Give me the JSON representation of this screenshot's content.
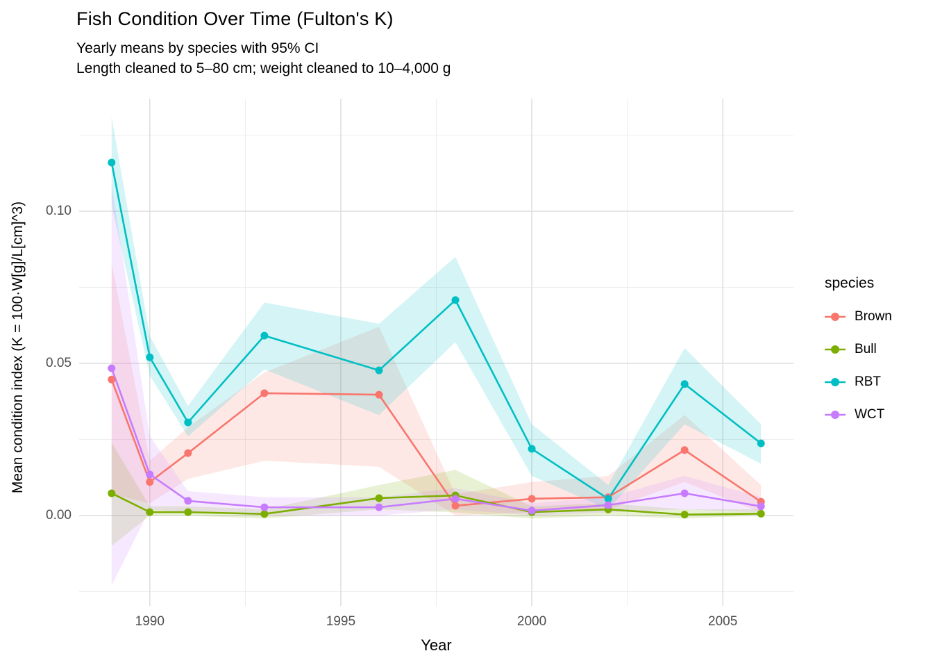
{
  "header": {
    "title": "Fish Condition Over Time (Fulton's K)",
    "subtitle_line1": "Yearly means by species with 95% CI",
    "subtitle_line2": "Length cleaned to 5–80 cm; weight cleaned to 10–4,000 g"
  },
  "chart_data": {
    "type": "line",
    "title": "Fish Condition Over Time (Fulton's K)",
    "subtitle": "Yearly means by species with 95% CI",
    "caption_line": "Length cleaned to 5–80 cm; weight cleaned to 10–4,000 g",
    "xlabel": "Year",
    "ylabel": "Mean condition index (K = 100·W[g]/L[cm]^3)",
    "legend_title": "species",
    "legend_position": "right",
    "grid": true,
    "ci_level": "95%",
    "x": [
      1989,
      1990,
      1991,
      1993,
      1996,
      1998,
      2000,
      2002,
      2004,
      2006
    ],
    "xlim": [
      1988.15,
      2006.85
    ],
    "ylim": [
      -0.0297,
      0.137
    ],
    "x_major_ticks": [
      1990,
      1995,
      2000,
      2005
    ],
    "x_major_tick_labels": [
      "1990",
      "1995",
      "2000",
      "2005"
    ],
    "x_minor_ticks": [
      1992.5,
      1997.5,
      2002.5
    ],
    "y_major_ticks": [
      0.0,
      0.05,
      0.1
    ],
    "y_major_tick_labels": [
      "0.00",
      "0.05",
      "0.10"
    ],
    "y_minor_ticks": [
      -0.025,
      0.025,
      0.075,
      0.125
    ],
    "series": [
      {
        "name": "Brown",
        "color": "#F8766D",
        "values": [
          0.0447,
          0.011,
          0.0205,
          0.0402,
          0.0397,
          0.0032,
          0.0055,
          0.006,
          0.0215,
          0.0045
        ],
        "ci_lower": [
          0.007,
          0.004,
          0.012,
          0.018,
          0.016,
          0.0,
          0.001,
          0.002,
          0.011,
          0.001
        ],
        "ci_upper": [
          0.083,
          0.018,
          0.029,
          0.047,
          0.062,
          0.007,
          0.011,
          0.013,
          0.033,
          0.01
        ]
      },
      {
        "name": "Bull",
        "color": "#7CAE00",
        "values": [
          0.0073,
          0.0011,
          0.0011,
          0.0005,
          0.0057,
          0.0066,
          0.0011,
          0.002,
          0.0003,
          0.0006
        ],
        "ci_lower": [
          -0.01,
          0.0,
          0.0,
          -0.001,
          0.002,
          0.001,
          -0.001,
          0.0,
          -0.001,
          0.0
        ],
        "ci_upper": [
          0.024,
          0.003,
          0.003,
          0.002,
          0.01,
          0.015,
          0.003,
          0.004,
          0.002,
          0.002
        ]
      },
      {
        "name": "RBT",
        "color": "#00BFC4",
        "values": [
          0.116,
          0.052,
          0.0306,
          0.0591,
          0.0477,
          0.0708,
          0.0219,
          0.0055,
          0.0432,
          0.0237
        ],
        "ci_lower": [
          0.102,
          0.046,
          0.026,
          0.048,
          0.033,
          0.057,
          0.013,
          0.002,
          0.03,
          0.017
        ],
        "ci_upper": [
          0.131,
          0.059,
          0.036,
          0.07,
          0.063,
          0.085,
          0.03,
          0.01,
          0.055,
          0.03
        ]
      },
      {
        "name": "WCT",
        "color": "#C77CFF",
        "values": [
          0.0484,
          0.0135,
          0.0048,
          0.0027,
          0.0027,
          0.0055,
          0.0016,
          0.0034,
          0.0073,
          0.003
        ],
        "ci_lower": [
          -0.023,
          0.002,
          0.001,
          0.0,
          0.0,
          0.002,
          0.0,
          0.001,
          0.002,
          0.001
        ],
        "ci_upper": [
          0.109,
          0.026,
          0.008,
          0.006,
          0.006,
          0.009,
          0.004,
          0.006,
          0.013,
          0.006
        ]
      }
    ],
    "style": {
      "grid_major_color": "#dedede",
      "grid_minor_color": "#ebebeb",
      "tick_label_color": "#4d4d4d",
      "ribbon_opacity": 0.17
    }
  }
}
